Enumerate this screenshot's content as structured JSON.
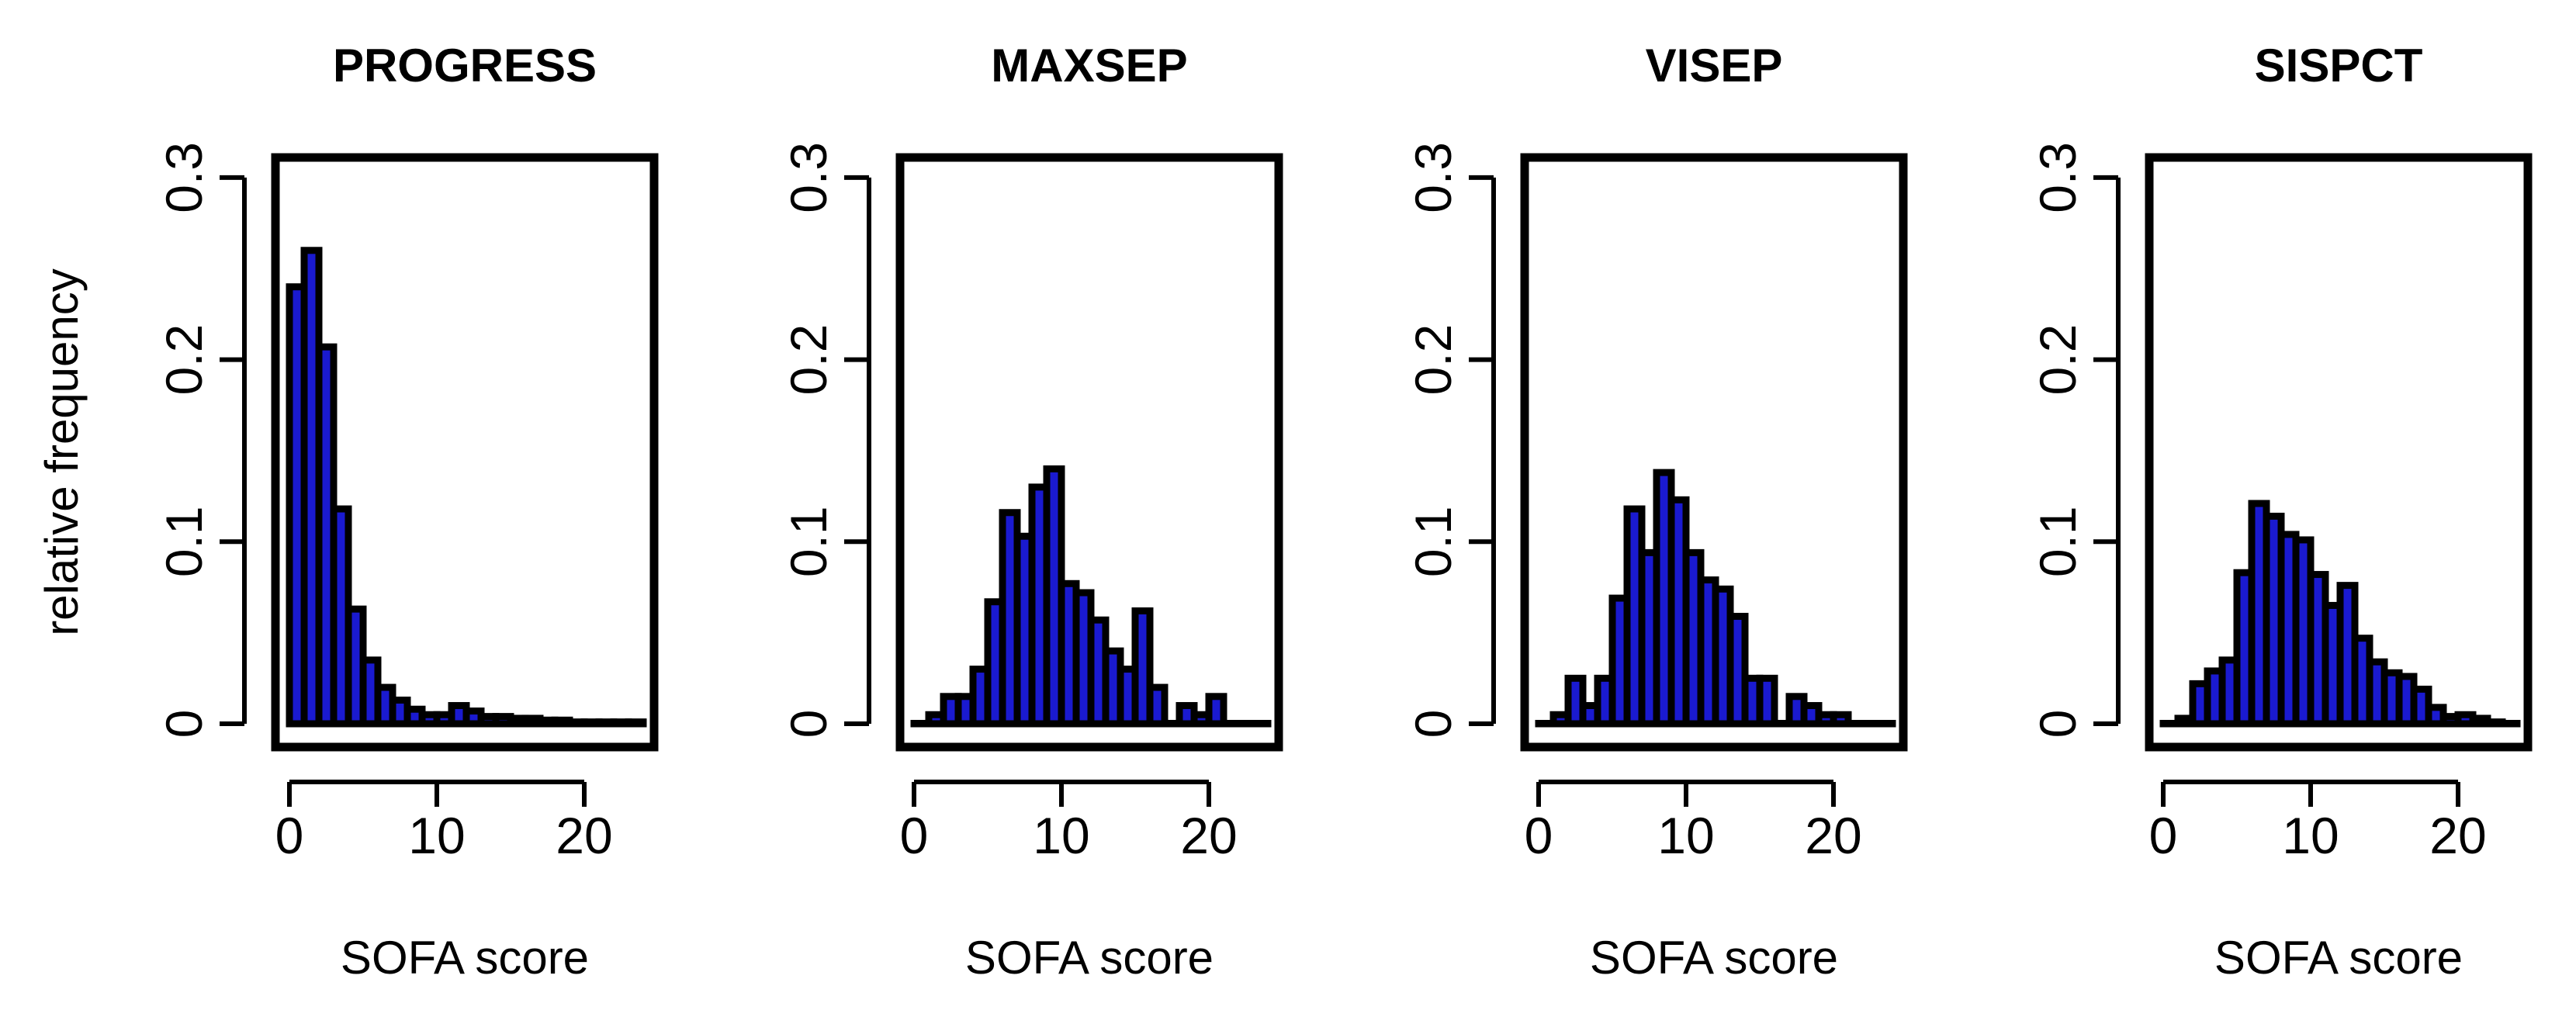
{
  "figure": {
    "ylabel": "relative frequency",
    "bar_color": "#1a1ad0",
    "edge_color": "#000000"
  },
  "chart_data": [
    {
      "type": "bar",
      "title": "PROGRESS",
      "xlabel": "SOFA score",
      "xlim": [
        0,
        24
      ],
      "ylim": [
        0,
        0.3
      ],
      "xticks": [
        0,
        10,
        20
      ],
      "yticks": [
        0,
        0.1,
        0.2,
        0.3
      ],
      "ytick_labels": [
        "0",
        "0.1",
        "0.2",
        "0.3"
      ],
      "x": [
        0,
        1,
        2,
        3,
        4,
        5,
        6,
        7,
        8,
        9,
        10,
        11,
        12,
        13,
        14,
        15,
        16,
        17,
        18,
        19,
        20,
        21,
        22,
        23
      ],
      "values": [
        0.24,
        0.26,
        0.207,
        0.118,
        0.063,
        0.035,
        0.02,
        0.013,
        0.008,
        0.005,
        0.005,
        0.01,
        0.007,
        0.004,
        0.004,
        0.003,
        0.003,
        0.002,
        0.002,
        0.001,
        0.001,
        0.001,
        0.001,
        0.001
      ]
    },
    {
      "type": "bar",
      "title": "MAXSEP",
      "xlabel": "SOFA score",
      "xlim": [
        0,
        24
      ],
      "ylim": [
        0,
        0.3
      ],
      "xticks": [
        0,
        10,
        20
      ],
      "yticks": [
        0,
        0.1,
        0.2,
        0.3
      ],
      "ytick_labels": [
        "0",
        "0.1",
        "0.2",
        "0.3"
      ],
      "x": [
        0,
        1,
        2,
        3,
        4,
        5,
        6,
        7,
        8,
        9,
        10,
        11,
        12,
        13,
        14,
        15,
        16,
        17,
        18,
        19,
        20,
        21,
        22,
        23
      ],
      "values": [
        0,
        0.005,
        0.015,
        0.015,
        0.03,
        0.067,
        0.116,
        0.103,
        0.13,
        0.14,
        0.077,
        0.072,
        0.057,
        0.04,
        0.03,
        0.062,
        0.02,
        0,
        0.01,
        0.005,
        0.015,
        0,
        0,
        0
      ]
    },
    {
      "type": "bar",
      "title": "VISEP",
      "xlabel": "SOFA score",
      "xlim": [
        0,
        24
      ],
      "ylim": [
        0,
        0.3
      ],
      "xticks": [
        0,
        10,
        20
      ],
      "yticks": [
        0,
        0.1,
        0.2,
        0.3
      ],
      "ytick_labels": [
        "0",
        "0.1",
        "0.2",
        "0.3"
      ],
      "x": [
        0,
        1,
        2,
        3,
        4,
        5,
        6,
        7,
        8,
        9,
        10,
        11,
        12,
        13,
        14,
        15,
        16,
        17,
        18,
        19,
        20,
        21,
        22,
        23
      ],
      "values": [
        0,
        0.005,
        0.025,
        0.01,
        0.025,
        0.069,
        0.118,
        0.094,
        0.138,
        0.123,
        0.094,
        0.079,
        0.074,
        0.059,
        0.025,
        0.025,
        0,
        0.015,
        0.01,
        0.005,
        0.005,
        0,
        0,
        0
      ]
    },
    {
      "type": "bar",
      "title": "SISPCT",
      "xlabel": "SOFA score",
      "xlim": [
        0,
        24
      ],
      "ylim": [
        0,
        0.3
      ],
      "xticks": [
        0,
        10,
        20
      ],
      "yticks": [
        0,
        0.1,
        0.2,
        0.3
      ],
      "ytick_labels": [
        "0",
        "0.1",
        "0.2",
        "0.3"
      ],
      "x": [
        0,
        1,
        2,
        3,
        4,
        5,
        6,
        7,
        8,
        9,
        10,
        11,
        12,
        13,
        14,
        15,
        16,
        17,
        18,
        19,
        20,
        21,
        22,
        23
      ],
      "values": [
        0,
        0.003,
        0.022,
        0.029,
        0.035,
        0.083,
        0.121,
        0.114,
        0.104,
        0.101,
        0.082,
        0.065,
        0.076,
        0.047,
        0.034,
        0.028,
        0.026,
        0.019,
        0.009,
        0.004,
        0.005,
        0.003,
        0.001,
        0
      ]
    }
  ]
}
